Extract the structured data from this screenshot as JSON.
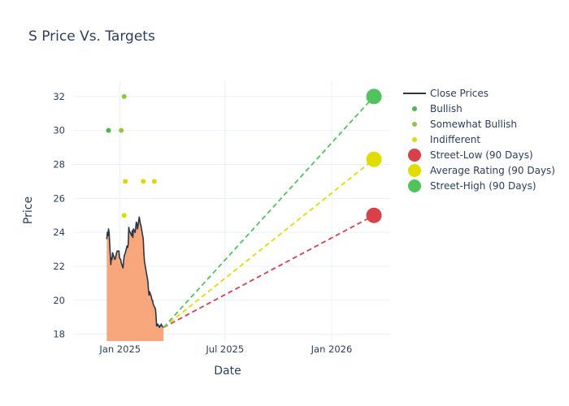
{
  "chart_data": {
    "type": "line",
    "title": "S Price Vs. Targets",
    "xlabel": "Date",
    "ylabel": "Price",
    "ylim": [
      17.6,
      32.9
    ],
    "x_tick_labels": [
      "Jan 2025",
      "Jul 2025",
      "Jan 2026"
    ],
    "y_ticks": [
      18,
      20,
      22,
      24,
      26,
      28,
      30,
      32
    ],
    "grid": true,
    "legend_position": "right",
    "colors": {
      "close": "#2a3645",
      "area": "#f8a77c",
      "bullish": "#4cb848",
      "somewhat_bullish": "#8ec63f",
      "indifferent": "#dadb00",
      "street_low": "#d9404a",
      "average": "#e0dd00",
      "street_high": "#4fc45c"
    },
    "close_prices": {
      "name": "Close Prices",
      "x": [
        "2024-12-09",
        "2024-12-10",
        "2024-12-11",
        "2024-12-12",
        "2024-12-13",
        "2024-12-16",
        "2024-12-17",
        "2024-12-18",
        "2024-12-19",
        "2024-12-20",
        "2024-12-23",
        "2024-12-24",
        "2024-12-26",
        "2024-12-27",
        "2024-12-30",
        "2024-12-31",
        "2025-01-02",
        "2025-01-03",
        "2025-01-06",
        "2025-01-07",
        "2025-01-08",
        "2025-01-10",
        "2025-01-13",
        "2025-01-14",
        "2025-01-15",
        "2025-01-16",
        "2025-01-17",
        "2025-01-21",
        "2025-01-22",
        "2025-01-23",
        "2025-01-24",
        "2025-01-27",
        "2025-01-28",
        "2025-01-29",
        "2025-01-30",
        "2025-01-31",
        "2025-02-03",
        "2025-02-04",
        "2025-02-05",
        "2025-02-06",
        "2025-02-07",
        "2025-02-10",
        "2025-02-11",
        "2025-02-12",
        "2025-02-13",
        "2025-02-14",
        "2025-02-18",
        "2025-02-19",
        "2025-02-20",
        "2025-02-21",
        "2025-02-24",
        "2025-02-25",
        "2025-02-26",
        "2025-02-27",
        "2025-02-28",
        "2025-03-03",
        "2025-03-04",
        "2025-03-05",
        "2025-03-06",
        "2025-03-07",
        "2025-03-10",
        "2025-03-11",
        "2025-03-12",
        "2025-03-13",
        "2025-03-14",
        "2025-03-17"
      ],
      "values": [
        23.6,
        24.0,
        23.8,
        24.2,
        24.0,
        22.1,
        22.5,
        22.4,
        22.8,
        22.7,
        22.4,
        22.5,
        22.8,
        22.9,
        22.9,
        22.5,
        22.4,
        22.2,
        21.9,
        22.3,
        22.6,
        22.8,
        23.2,
        23.1,
        23.3,
        24.3,
        24.1,
        23.8,
        24.1,
        23.7,
        24.2,
        24.0,
        24.3,
        24.6,
        24.5,
        24.2,
        24.9,
        24.7,
        24.5,
        24.4,
        24.2,
        23.6,
        22.8,
        22.3,
        22.1,
        21.9,
        21.1,
        20.6,
        20.3,
        20.5,
        20.2,
        20.0,
        20.0,
        19.8,
        19.7,
        19.5,
        19.1,
        18.5,
        18.5,
        18.6,
        18.4,
        18.5,
        18.5,
        18.6,
        18.5,
        18.4
      ]
    },
    "ratings": [
      {
        "name": "Bullish",
        "color_key": "bullish",
        "points": [
          {
            "x": "2024-12-12",
            "y": 30
          }
        ]
      },
      {
        "name": "Somewhat Bullish",
        "color_key": "somewhat_bullish",
        "points": [
          {
            "x": "2025-01-03",
            "y": 30
          },
          {
            "x": "2025-01-08",
            "y": 32
          }
        ]
      },
      {
        "name": "Indifferent",
        "color_key": "indifferent",
        "points": [
          {
            "x": "2025-01-08",
            "y": 25
          },
          {
            "x": "2025-01-10",
            "y": 27
          },
          {
            "x": "2025-02-10",
            "y": 27
          },
          {
            "x": "2025-03-01",
            "y": 27
          }
        ]
      }
    ],
    "targets": {
      "start": {
        "x": "2025-03-17",
        "y": 18.4
      },
      "end_date": "2026-03-15",
      "series": [
        {
          "name": "Street-Low (90 Days)",
          "color_key": "street_low",
          "value": 25
        },
        {
          "name": "Average Rating (90 Days)",
          "color_key": "average",
          "value": 28.3
        },
        {
          "name": "Street-High (90 Days)",
          "color_key": "street_high",
          "value": 32
        }
      ]
    }
  }
}
